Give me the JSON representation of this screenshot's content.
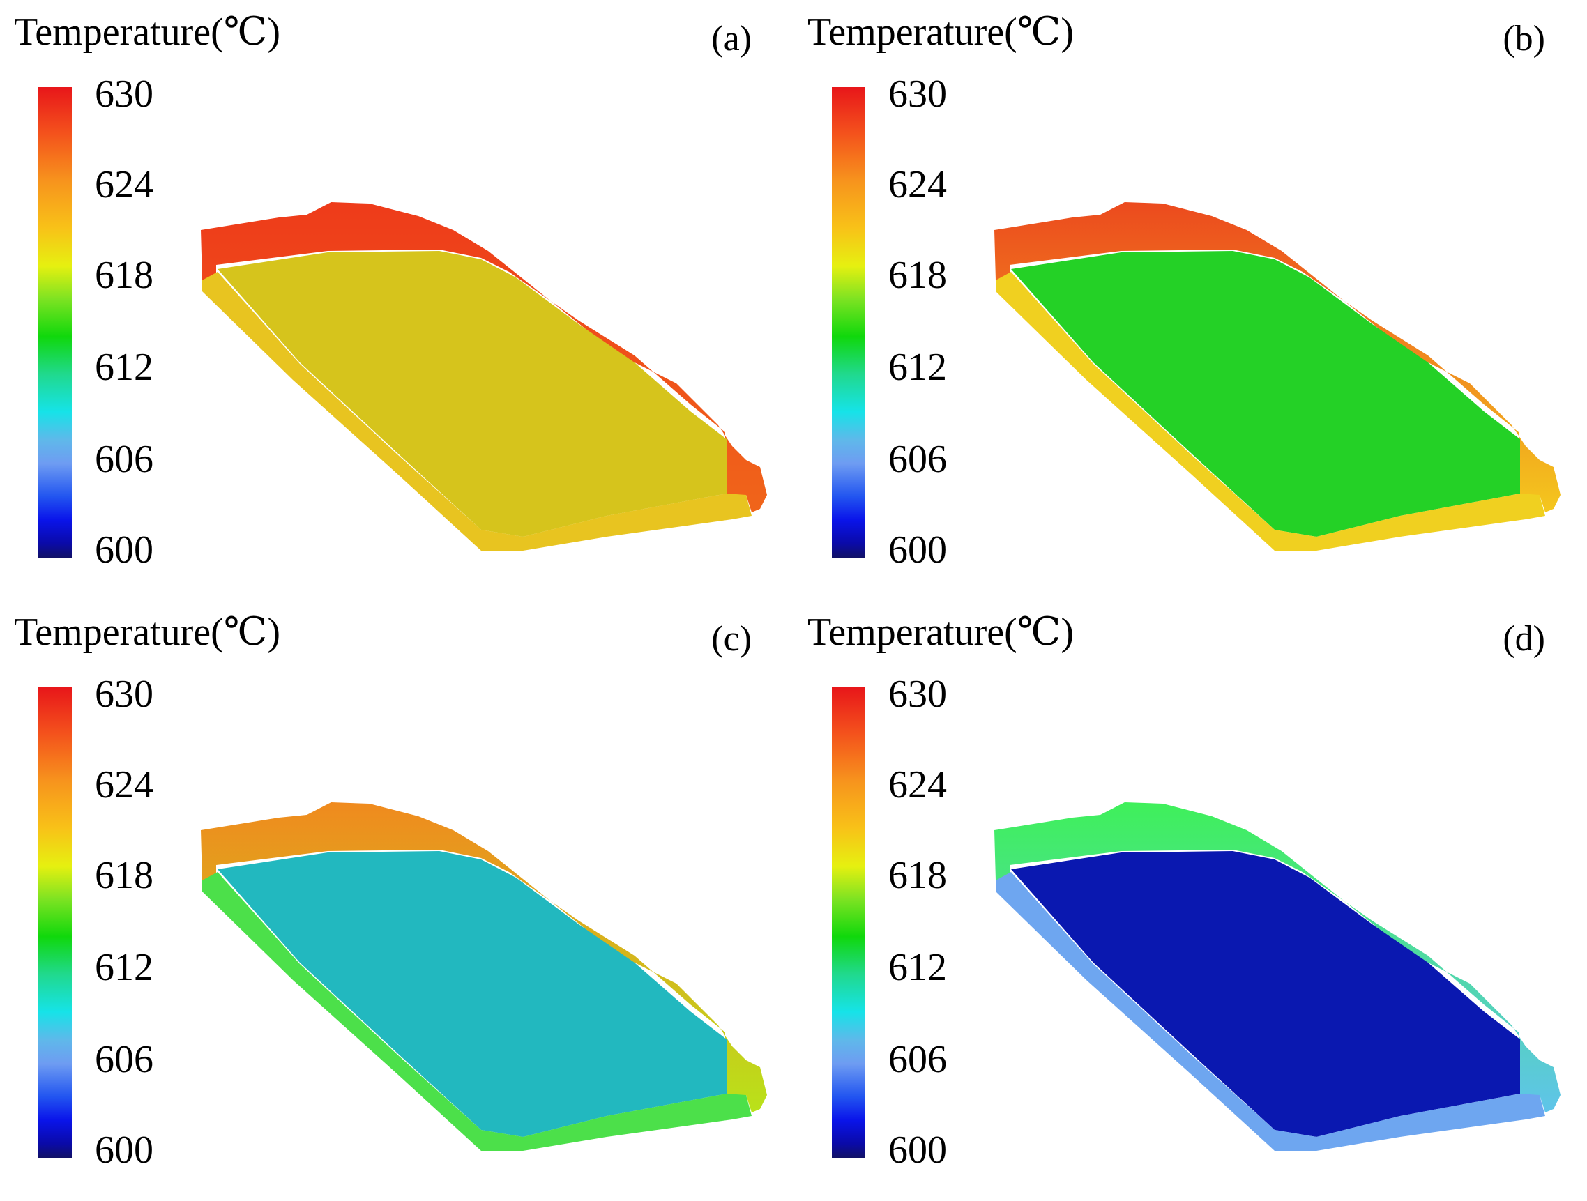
{
  "legend": {
    "title": "Temperature(℃)",
    "ticks": [
      "630",
      "624",
      "618",
      "612",
      "606",
      "600"
    ]
  },
  "panels": [
    {
      "label": "(a)",
      "colors": {
        "rim": "#ee3b1a",
        "rim_edge": "#f0651a",
        "floor": "#d6c41c",
        "floor_edge": "#e8c420"
      }
    },
    {
      "label": "(b)",
      "colors": {
        "rim": "#ec4a1e",
        "rim_edge": "#f4c71e",
        "floor": "#24d126",
        "floor_edge": "#f0d020"
      }
    },
    {
      "label": "(c)",
      "colors": {
        "rim": "#f08a1e",
        "rim_edge": "#b9e21a",
        "floor": "#22b8bf",
        "floor_edge": "#4ce04a"
      }
    },
    {
      "label": "(d)",
      "colors": {
        "rim": "#3ff05a",
        "rim_edge": "#5fc4ea",
        "floor": "#0a18b0",
        "floor_edge": "#6ea6f0"
      }
    }
  ]
}
